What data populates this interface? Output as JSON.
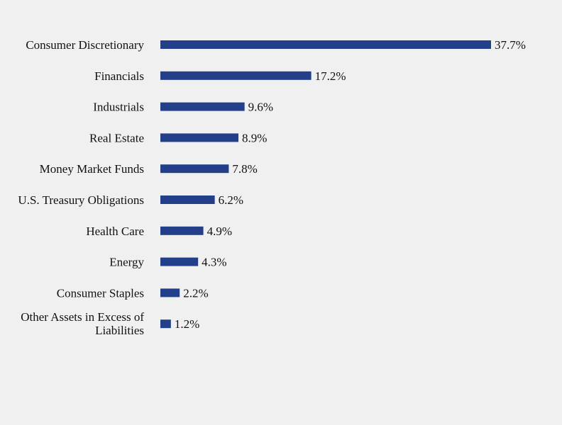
{
  "chart_data": {
    "type": "bar",
    "orientation": "horizontal",
    "title": "",
    "xlabel": "",
    "ylabel": "",
    "categories": [
      "Consumer Discretionary",
      "Financials",
      "Industrials",
      "Real Estate",
      "Money Market Funds",
      "U.S. Treasury Obligations",
      "Health Care",
      "Energy",
      "Consumer Staples",
      "Other Assets in Excess of Liabilities"
    ],
    "values": [
      37.7,
      17.2,
      9.6,
      8.9,
      7.8,
      6.2,
      4.9,
      4.3,
      2.2,
      1.2
    ],
    "value_labels": [
      "37.7%",
      "17.2%",
      "9.6%",
      "8.9%",
      "7.8%",
      "6.2%",
      "4.9%",
      "4.3%",
      "2.2%",
      "1.2%"
    ],
    "xlim": [
      0,
      37.7
    ],
    "grid": false,
    "bar_color": "#243f8a"
  }
}
